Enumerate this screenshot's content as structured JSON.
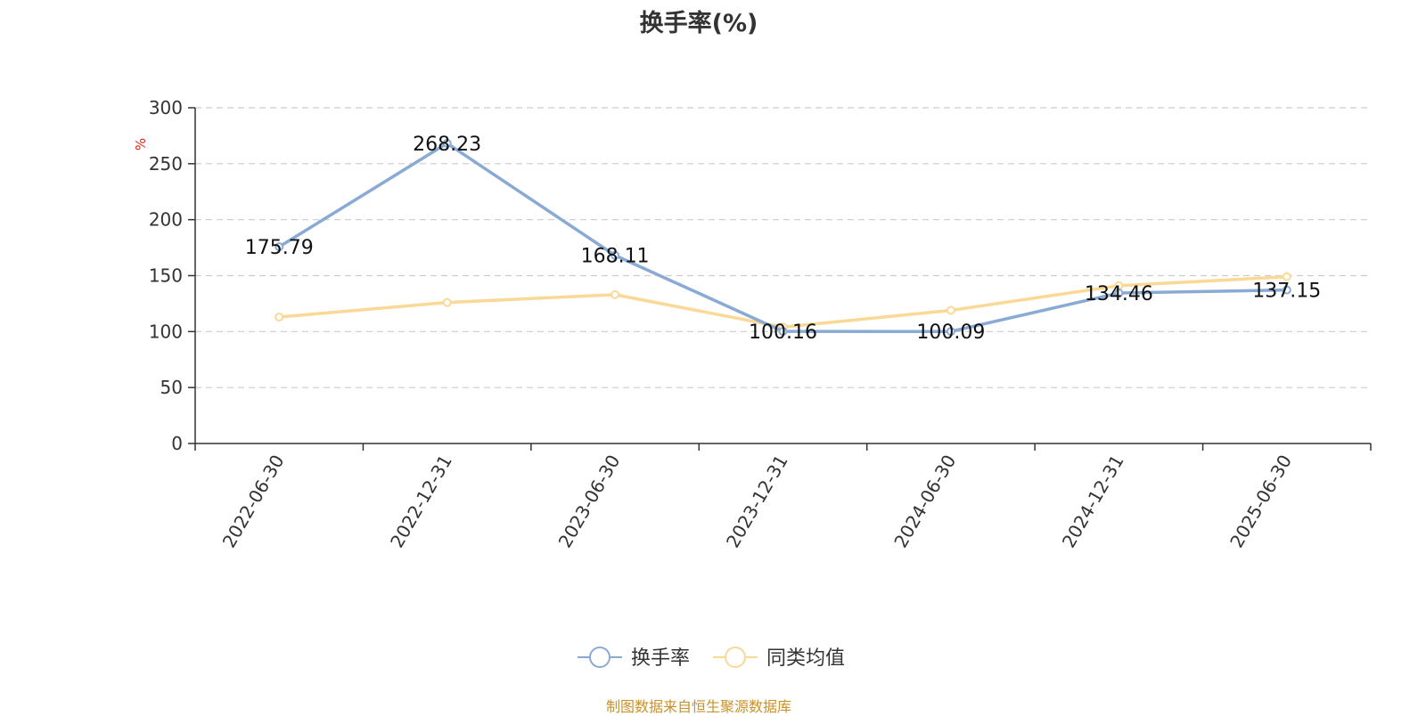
{
  "title": "换手率(%)",
  "unit_label": "%",
  "source_note": "制图数据来自恒生聚源数据库",
  "chart_data": {
    "type": "line",
    "title": "换手率(%)",
    "ylabel": "%",
    "ylim": [
      0,
      300
    ],
    "yticks": [
      0,
      50,
      100,
      150,
      200,
      250,
      300
    ],
    "categories": [
      "2022-06-30",
      "2022-12-31",
      "2023-06-30",
      "2023-12-31",
      "2024-06-30",
      "2024-12-31",
      "2025-06-30"
    ],
    "grid": true,
    "legend_position": "bottom",
    "series": [
      {
        "name": "换手率",
        "color": "#8aaad6",
        "values": [
          175.79,
          268.23,
          168.11,
          100.16,
          100.09,
          134.46,
          137.15
        ],
        "labels": [
          "175.79",
          "268.23",
          "168.11",
          "100.16",
          "100.09",
          "134.46",
          "137.15"
        ]
      },
      {
        "name": "同类均值",
        "color": "#fad896",
        "values": [
          113,
          126,
          133,
          104,
          119,
          141,
          149
        ]
      }
    ]
  }
}
